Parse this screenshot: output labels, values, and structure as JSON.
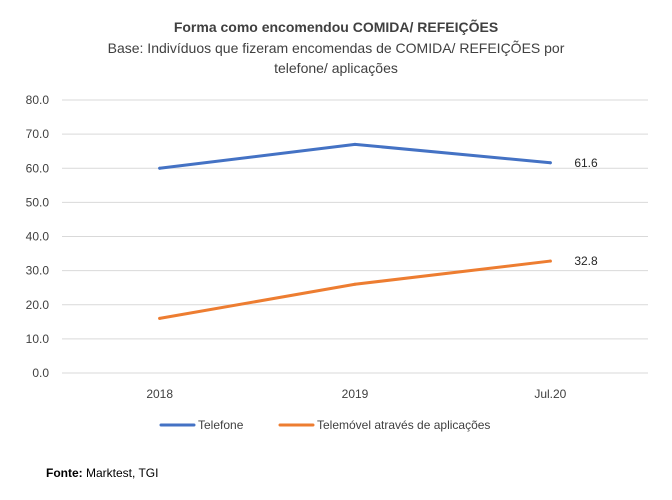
{
  "chart_data": {
    "type": "line",
    "title": "Forma como encomendou COMIDA/ REFEIÇÕES",
    "subtitle_lines": [
      "Base: Indivíduos que fizeram encomendas de COMIDA/ REFEIÇÕES por",
      "telefone/ aplicações"
    ],
    "categories": [
      "2018",
      "2019",
      "Jul.20"
    ],
    "series": [
      {
        "name": "Telefone",
        "values": [
          60.0,
          67.0,
          61.6
        ],
        "color": "#4472C4",
        "end_label": "61.6"
      },
      {
        "name": "Telemóvel através de aplicações",
        "values": [
          16.0,
          26.0,
          32.8
        ],
        "color": "#ED7D31",
        "end_label": "32.8"
      }
    ],
    "ylim": [
      0,
      80
    ],
    "yticks": [
      "0.0",
      "10.0",
      "20.0",
      "30.0",
      "40.0",
      "50.0",
      "60.0",
      "70.0",
      "80.0"
    ],
    "grid": true,
    "legend": "bottom"
  },
  "source": {
    "label": "Fonte:",
    "text": " Marktest, TGI"
  }
}
